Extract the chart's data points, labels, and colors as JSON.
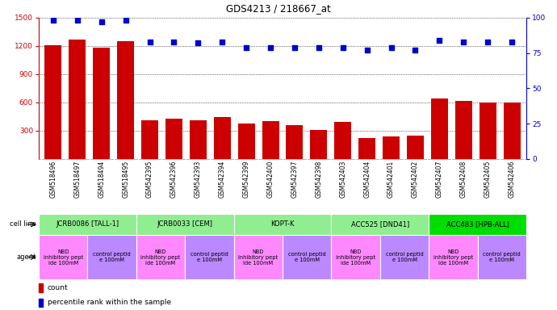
{
  "title": "GDS4213 / 218667_at",
  "samples": [
    "GSM518496",
    "GSM518497",
    "GSM518494",
    "GSM518495",
    "GSM542395",
    "GSM542396",
    "GSM542393",
    "GSM542394",
    "GSM542399",
    "GSM542400",
    "GSM542397",
    "GSM542398",
    "GSM542403",
    "GSM542404",
    "GSM542401",
    "GSM542402",
    "GSM542407",
    "GSM542408",
    "GSM542405",
    "GSM542406"
  ],
  "counts": [
    1205,
    1270,
    1185,
    1255,
    410,
    430,
    415,
    445,
    375,
    400,
    360,
    305,
    390,
    220,
    240,
    250,
    640,
    620,
    600,
    600
  ],
  "percentile_ranks": [
    98,
    98,
    97,
    98,
    83,
    83,
    82,
    83,
    79,
    79,
    79,
    79,
    79,
    77,
    79,
    77,
    84,
    83,
    83,
    83
  ],
  "ylim_left": [
    0,
    1500
  ],
  "ylim_right": [
    0,
    100
  ],
  "yticks_left": [
    300,
    600,
    900,
    1200,
    1500
  ],
  "yticks_right": [
    0,
    25,
    50,
    75,
    100
  ],
  "bar_color": "#CC0000",
  "dot_color": "#0000CC",
  "cell_lines": [
    {
      "label": "JCRB0086 [TALL-1]",
      "start": 0,
      "end": 4,
      "color": "#90EE90"
    },
    {
      "label": "JCRB0033 [CEM]",
      "start": 4,
      "end": 8,
      "color": "#90EE90"
    },
    {
      "label": "KOPT-K",
      "start": 8,
      "end": 12,
      "color": "#90EE90"
    },
    {
      "label": "ACC525 [DND41]",
      "start": 12,
      "end": 16,
      "color": "#90EE90"
    },
    {
      "label": "ACC483 [HPB-ALL]",
      "start": 16,
      "end": 20,
      "color": "#00DD00"
    }
  ],
  "agents": [
    {
      "label": "NBD\ninhibitory pept\nide 100mM",
      "start": 0,
      "end": 2,
      "color": "#FF88FF"
    },
    {
      "label": "control peptid\ne 100mM",
      "start": 2,
      "end": 4,
      "color": "#BB88FF"
    },
    {
      "label": "NBD\ninhibitory pept\nide 100mM",
      "start": 4,
      "end": 6,
      "color": "#FF88FF"
    },
    {
      "label": "control peptid\ne 100mM",
      "start": 6,
      "end": 8,
      "color": "#BB88FF"
    },
    {
      "label": "NBD\ninhibitory pept\nide 100mM",
      "start": 8,
      "end": 10,
      "color": "#FF88FF"
    },
    {
      "label": "control peptid\ne 100mM",
      "start": 10,
      "end": 12,
      "color": "#BB88FF"
    },
    {
      "label": "NBD\ninhibitory pept\nide 100mM",
      "start": 12,
      "end": 14,
      "color": "#FF88FF"
    },
    {
      "label": "control peptid\ne 100mM",
      "start": 14,
      "end": 16,
      "color": "#BB88FF"
    },
    {
      "label": "NBD\ninhibitory pept\nide 100mM",
      "start": 16,
      "end": 18,
      "color": "#FF88FF"
    },
    {
      "label": "control peptid\ne 100mM",
      "start": 18,
      "end": 20,
      "color": "#BB88FF"
    }
  ],
  "background_color": "#FFFFFF",
  "label_color_left": "#CC0000",
  "label_color_right": "#0000CC",
  "fig_width": 6.9,
  "fig_height": 3.84,
  "dpi": 100
}
